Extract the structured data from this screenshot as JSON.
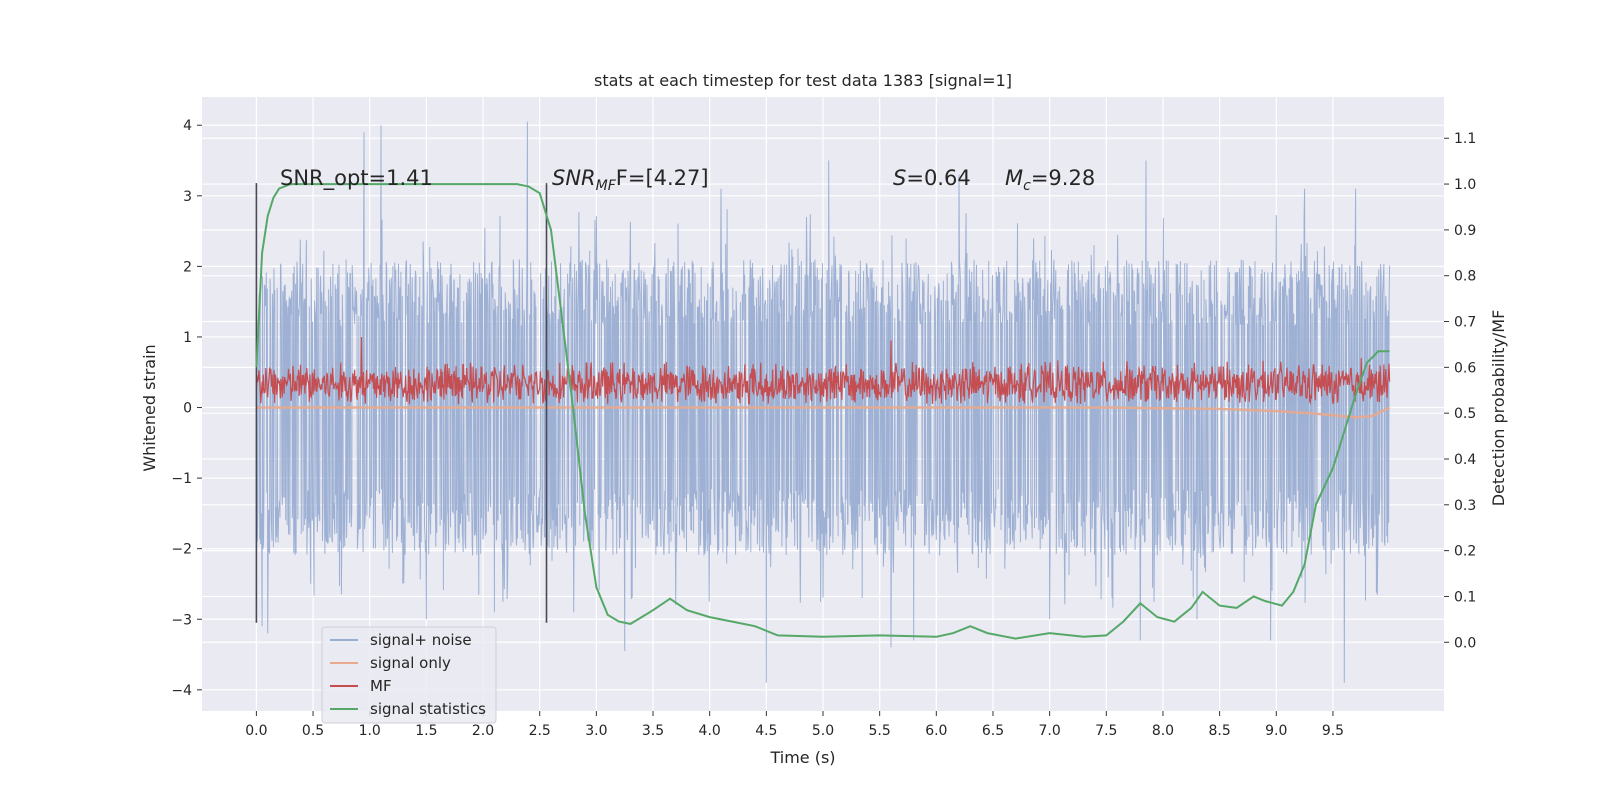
{
  "chart_data": {
    "type": "line",
    "title": "stats at each timestep for test data 1383 [signal=1]",
    "xlabel": "Time (s)",
    "ylabel_left": "Whitened strain",
    "ylabel_right": "Detection probability/MF",
    "xlim": [
      -0.48,
      10.48
    ],
    "ylim_left": [
      -4.3,
      4.4
    ],
    "ylim_right": [
      -0.15,
      1.19
    ],
    "x_ticks": [
      "0.0",
      "0.5",
      "1.0",
      "1.5",
      "2.0",
      "2.5",
      "3.0",
      "3.5",
      "4.0",
      "4.5",
      "5.0",
      "5.5",
      "6.0",
      "6.5",
      "7.0",
      "7.5",
      "8.0",
      "8.5",
      "9.0",
      "9.5"
    ],
    "y_ticks_left": [
      "4",
      "3",
      "2",
      "1",
      "0",
      "−1",
      "−2",
      "−3",
      "−4"
    ],
    "y_ticks_right": [
      "1.1",
      "1.0",
      "0.9",
      "0.8",
      "0.7",
      "0.6",
      "0.5",
      "0.4",
      "0.3",
      "0.2",
      "0.1",
      "0.0"
    ],
    "grid": true,
    "legend_position": "lower-left",
    "annotations": {
      "snr_opt": "SNR_opt=1.41",
      "snr_mf_main": "SNR",
      "snr_mf_sub": "MF",
      "snr_mf_rest": "F=[4.27]",
      "s_main": "S",
      "s_rest": "=0.64",
      "mc_main": "M",
      "mc_sub": "c",
      "mc_rest": "=9.28"
    },
    "markers": [
      {
        "x": 0.0,
        "y": [
          -3.05,
          3.18
        ]
      },
      {
        "x": 2.56,
        "y": [
          -3.05,
          3.18
        ]
      }
    ],
    "series": [
      {
        "name": "signal+ noise",
        "axis": "left",
        "color": "#9aaed2",
        "envelope": {
          "x": [
            0.0,
            10.0
          ],
          "lower_typical": -2.1,
          "upper_typical": 2.1,
          "extremes": [
            [
              0.05,
              -3.1
            ],
            [
              0.1,
              -3.2
            ],
            [
              0.95,
              3.9
            ],
            [
              1.1,
              4.0
            ],
            [
              1.5,
              -3.0
            ],
            [
              2.1,
              -2.9
            ],
            [
              2.39,
              4.05
            ],
            [
              2.8,
              -2.9
            ],
            [
              3.25,
              -3.45
            ],
            [
              3.7,
              -2.8
            ],
            [
              4.1,
              3.1
            ],
            [
              4.5,
              -3.9
            ],
            [
              5.05,
              3.5
            ],
            [
              5.6,
              -3.4
            ],
            [
              5.8,
              -3.3
            ],
            [
              6.2,
              3.3
            ],
            [
              7.0,
              -3.0
            ],
            [
              7.8,
              -3.3
            ],
            [
              7.85,
              3.5
            ],
            [
              8.3,
              -3.0
            ],
            [
              8.95,
              -3.3
            ],
            [
              9.25,
              3.1
            ],
            [
              9.6,
              -3.9
            ],
            [
              9.7,
              3.1
            ]
          ]
        }
      },
      {
        "name": "signal only",
        "axis": "left",
        "color": "#e8a98c",
        "x": [
          0.0,
          7.5,
          8.0,
          8.5,
          9.0,
          9.3,
          9.5,
          9.7,
          9.85,
          10.0
        ],
        "values": [
          0.0,
          0.0,
          -0.01,
          -0.02,
          -0.05,
          -0.08,
          -0.11,
          -0.14,
          -0.12,
          0.0
        ]
      },
      {
        "name": "MF",
        "axis": "left",
        "color": "#c44e52",
        "band": {
          "x": [
            0.0,
            10.0
          ],
          "center": 0.33,
          "amplitude": 0.35,
          "peaks": [
            [
              0.93,
              1.0
            ],
            [
              5.6,
              0.95
            ],
            [
              9.75,
              0.7
            ]
          ]
        }
      },
      {
        "name": "signal statistics",
        "axis": "right",
        "color": "#55a868",
        "x": [
          0.0,
          0.05,
          0.1,
          0.15,
          0.2,
          0.3,
          0.5,
          1.0,
          1.5,
          2.0,
          2.3,
          2.4,
          2.5,
          2.6,
          2.7,
          2.8,
          2.9,
          3.0,
          3.1,
          3.2,
          3.3,
          3.4,
          3.5,
          3.65,
          3.8,
          4.0,
          4.2,
          4.4,
          4.6,
          5.0,
          5.5,
          6.0,
          6.15,
          6.3,
          6.45,
          6.7,
          7.0,
          7.3,
          7.5,
          7.65,
          7.8,
          7.95,
          8.1,
          8.25,
          8.35,
          8.5,
          8.65,
          8.8,
          8.9,
          9.05,
          9.15,
          9.25,
          9.35,
          9.5,
          9.6,
          9.7,
          9.8,
          9.9,
          10.0
        ],
        "values": [
          0.6,
          0.85,
          0.93,
          0.97,
          0.99,
          1.0,
          1.0,
          1.0,
          1.0,
          1.0,
          1.0,
          0.995,
          0.98,
          0.9,
          0.7,
          0.5,
          0.28,
          0.12,
          0.06,
          0.045,
          0.04,
          0.055,
          0.07,
          0.095,
          0.07,
          0.055,
          0.045,
          0.035,
          0.015,
          0.012,
          0.015,
          0.012,
          0.02,
          0.035,
          0.02,
          0.008,
          0.02,
          0.012,
          0.015,
          0.045,
          0.085,
          0.055,
          0.045,
          0.075,
          0.11,
          0.08,
          0.075,
          0.1,
          0.09,
          0.08,
          0.11,
          0.17,
          0.3,
          0.38,
          0.46,
          0.54,
          0.61,
          0.635,
          0.635
        ]
      }
    ]
  }
}
